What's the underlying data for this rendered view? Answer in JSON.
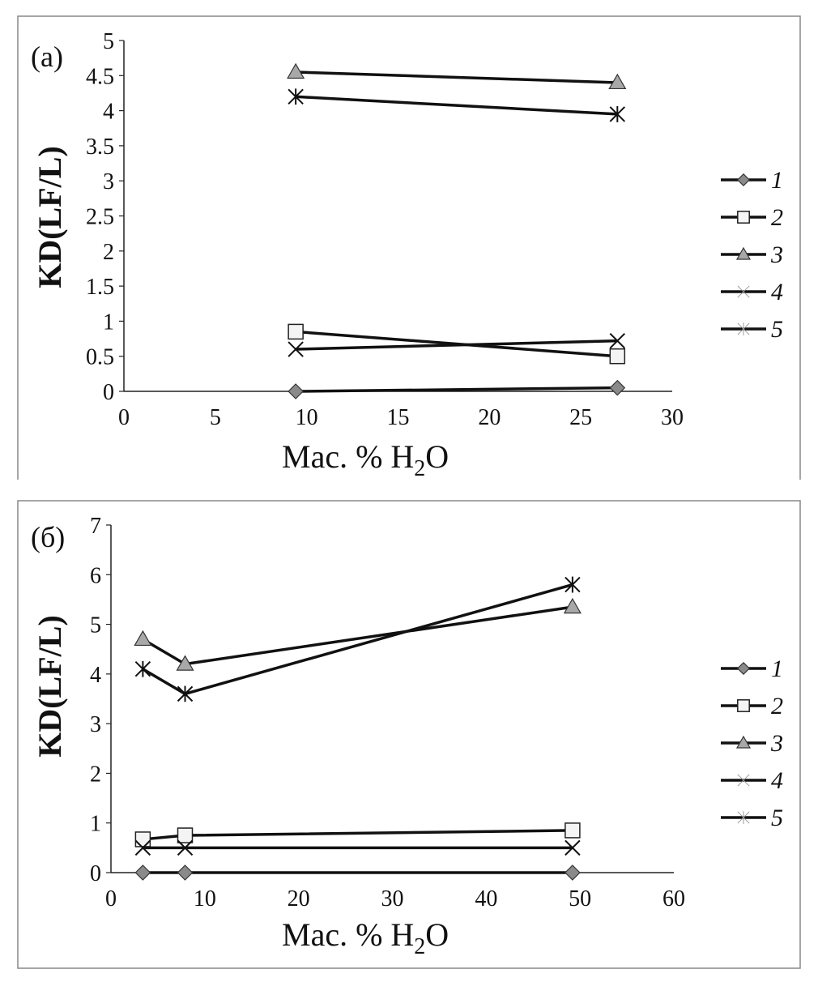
{
  "chart_data": [
    {
      "type": "line",
      "panel_label": "(a)",
      "xlabel_main": "Mac. % H",
      "xlabel_sub": "2",
      "xlabel_tail": "O",
      "ylabel": "KD(LF/L)",
      "xlim": [
        0,
        30
      ],
      "ylim": [
        0,
        5
      ],
      "xticks": [
        0,
        5,
        10,
        15,
        20,
        25,
        30
      ],
      "yticks": [
        0,
        0.5,
        1,
        1.5,
        2,
        2.5,
        3,
        3.5,
        4,
        4.5,
        5
      ],
      "legend_position": "right",
      "x": [
        9.4,
        27.0
      ],
      "series": [
        {
          "name": "1",
          "marker": "diamond",
          "values": [
            0.0,
            0.05
          ]
        },
        {
          "name": "2",
          "marker": "square",
          "values": [
            0.85,
            0.5
          ]
        },
        {
          "name": "3",
          "marker": "triangle",
          "values": [
            4.55,
            4.4
          ]
        },
        {
          "name": "4",
          "marker": "x",
          "values": [
            0.6,
            0.72
          ]
        },
        {
          "name": "5",
          "marker": "asterisk",
          "values": [
            4.2,
            3.95
          ]
        }
      ]
    },
    {
      "type": "line",
      "panel_label": "(б)",
      "xlabel_main": "Mac. % H",
      "xlabel_sub": "2",
      "xlabel_tail": "O",
      "ylabel": "KD(LF/L)",
      "xlim": [
        0,
        60
      ],
      "ylim": [
        0,
        7
      ],
      "xticks": [
        0,
        10,
        20,
        30,
        40,
        50,
        60
      ],
      "yticks": [
        0,
        1,
        2,
        3,
        4,
        5,
        6,
        7
      ],
      "legend_position": "right",
      "x": [
        3.4,
        7.9,
        49.2
      ],
      "series": [
        {
          "name": "1",
          "marker": "diamond",
          "values": [
            0.0,
            0.0,
            0.0
          ]
        },
        {
          "name": "2",
          "marker": "square",
          "values": [
            0.67,
            0.75,
            0.85
          ]
        },
        {
          "name": "3",
          "marker": "triangle",
          "values": [
            4.7,
            4.2,
            5.35
          ]
        },
        {
          "name": "4",
          "marker": "x",
          "values": [
            0.5,
            0.5,
            0.5
          ]
        },
        {
          "name": "5",
          "marker": "asterisk",
          "values": [
            4.1,
            3.6,
            5.8
          ]
        }
      ]
    }
  ],
  "colors": {
    "line": "#111111",
    "marker_fill_gray": "#8a8a8a",
    "triangle_fill": "#a8a8a8",
    "square_fill": "#f4f4f4",
    "frame": "#888888"
  }
}
